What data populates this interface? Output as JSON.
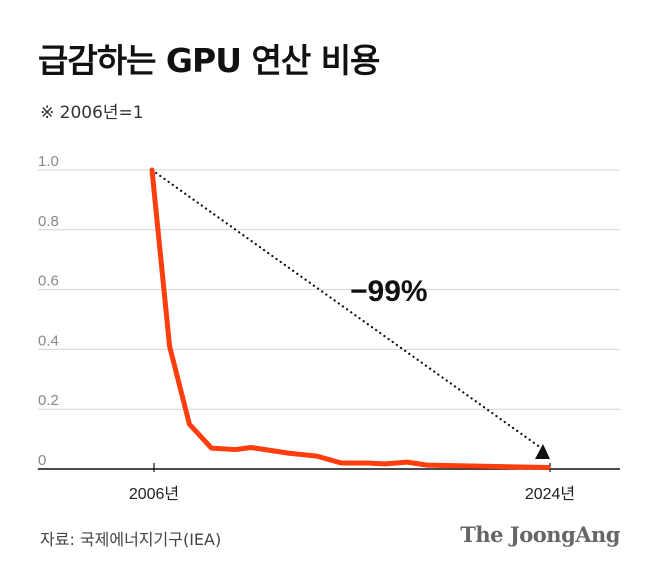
{
  "title": "급감하는 GPU 연산 비용",
  "subtitle": "※ 2006년=1",
  "source": "자료: 국제에너지기구(IEA)",
  "brand": "The JoongAng",
  "chart_data": {
    "type": "line",
    "title": "급감하는 GPU 연산 비용",
    "subtitle": "※ 2006년=1",
    "ylim": [
      0,
      1.0
    ],
    "yticks": [
      0,
      0.2,
      0.4,
      0.6,
      0.8,
      1.0
    ],
    "ytick_labels": [
      "0",
      "0.2",
      "0.4",
      "0.6",
      "0.8",
      "1.0"
    ],
    "xlim": [
      2006,
      2024
    ],
    "xticks": [
      2006,
      2024
    ],
    "xtick_labels": [
      "2006년",
      "2024년"
    ],
    "grid": true,
    "line_color": "#ff3d0d",
    "series": [
      {
        "x": [
          2006,
          2006.8,
          2007.7,
          2008.7,
          2009.8,
          2010.5,
          2012.2,
          2013.5,
          2014.6,
          2015.8,
          2016.6,
          2017.6,
          2018.5,
          2024
        ],
        "y": [
          1.0,
          0.41,
          0.15,
          0.07,
          0.065,
          0.072,
          0.053,
          0.043,
          0.02,
          0.02,
          0.017,
          0.023,
          0.013,
          0.005
        ]
      }
    ],
    "annotation": {
      "text": "−99%",
      "arrow_from": [
        2006,
        1.0
      ],
      "arrow_to": [
        2024,
        0.05
      ]
    }
  }
}
